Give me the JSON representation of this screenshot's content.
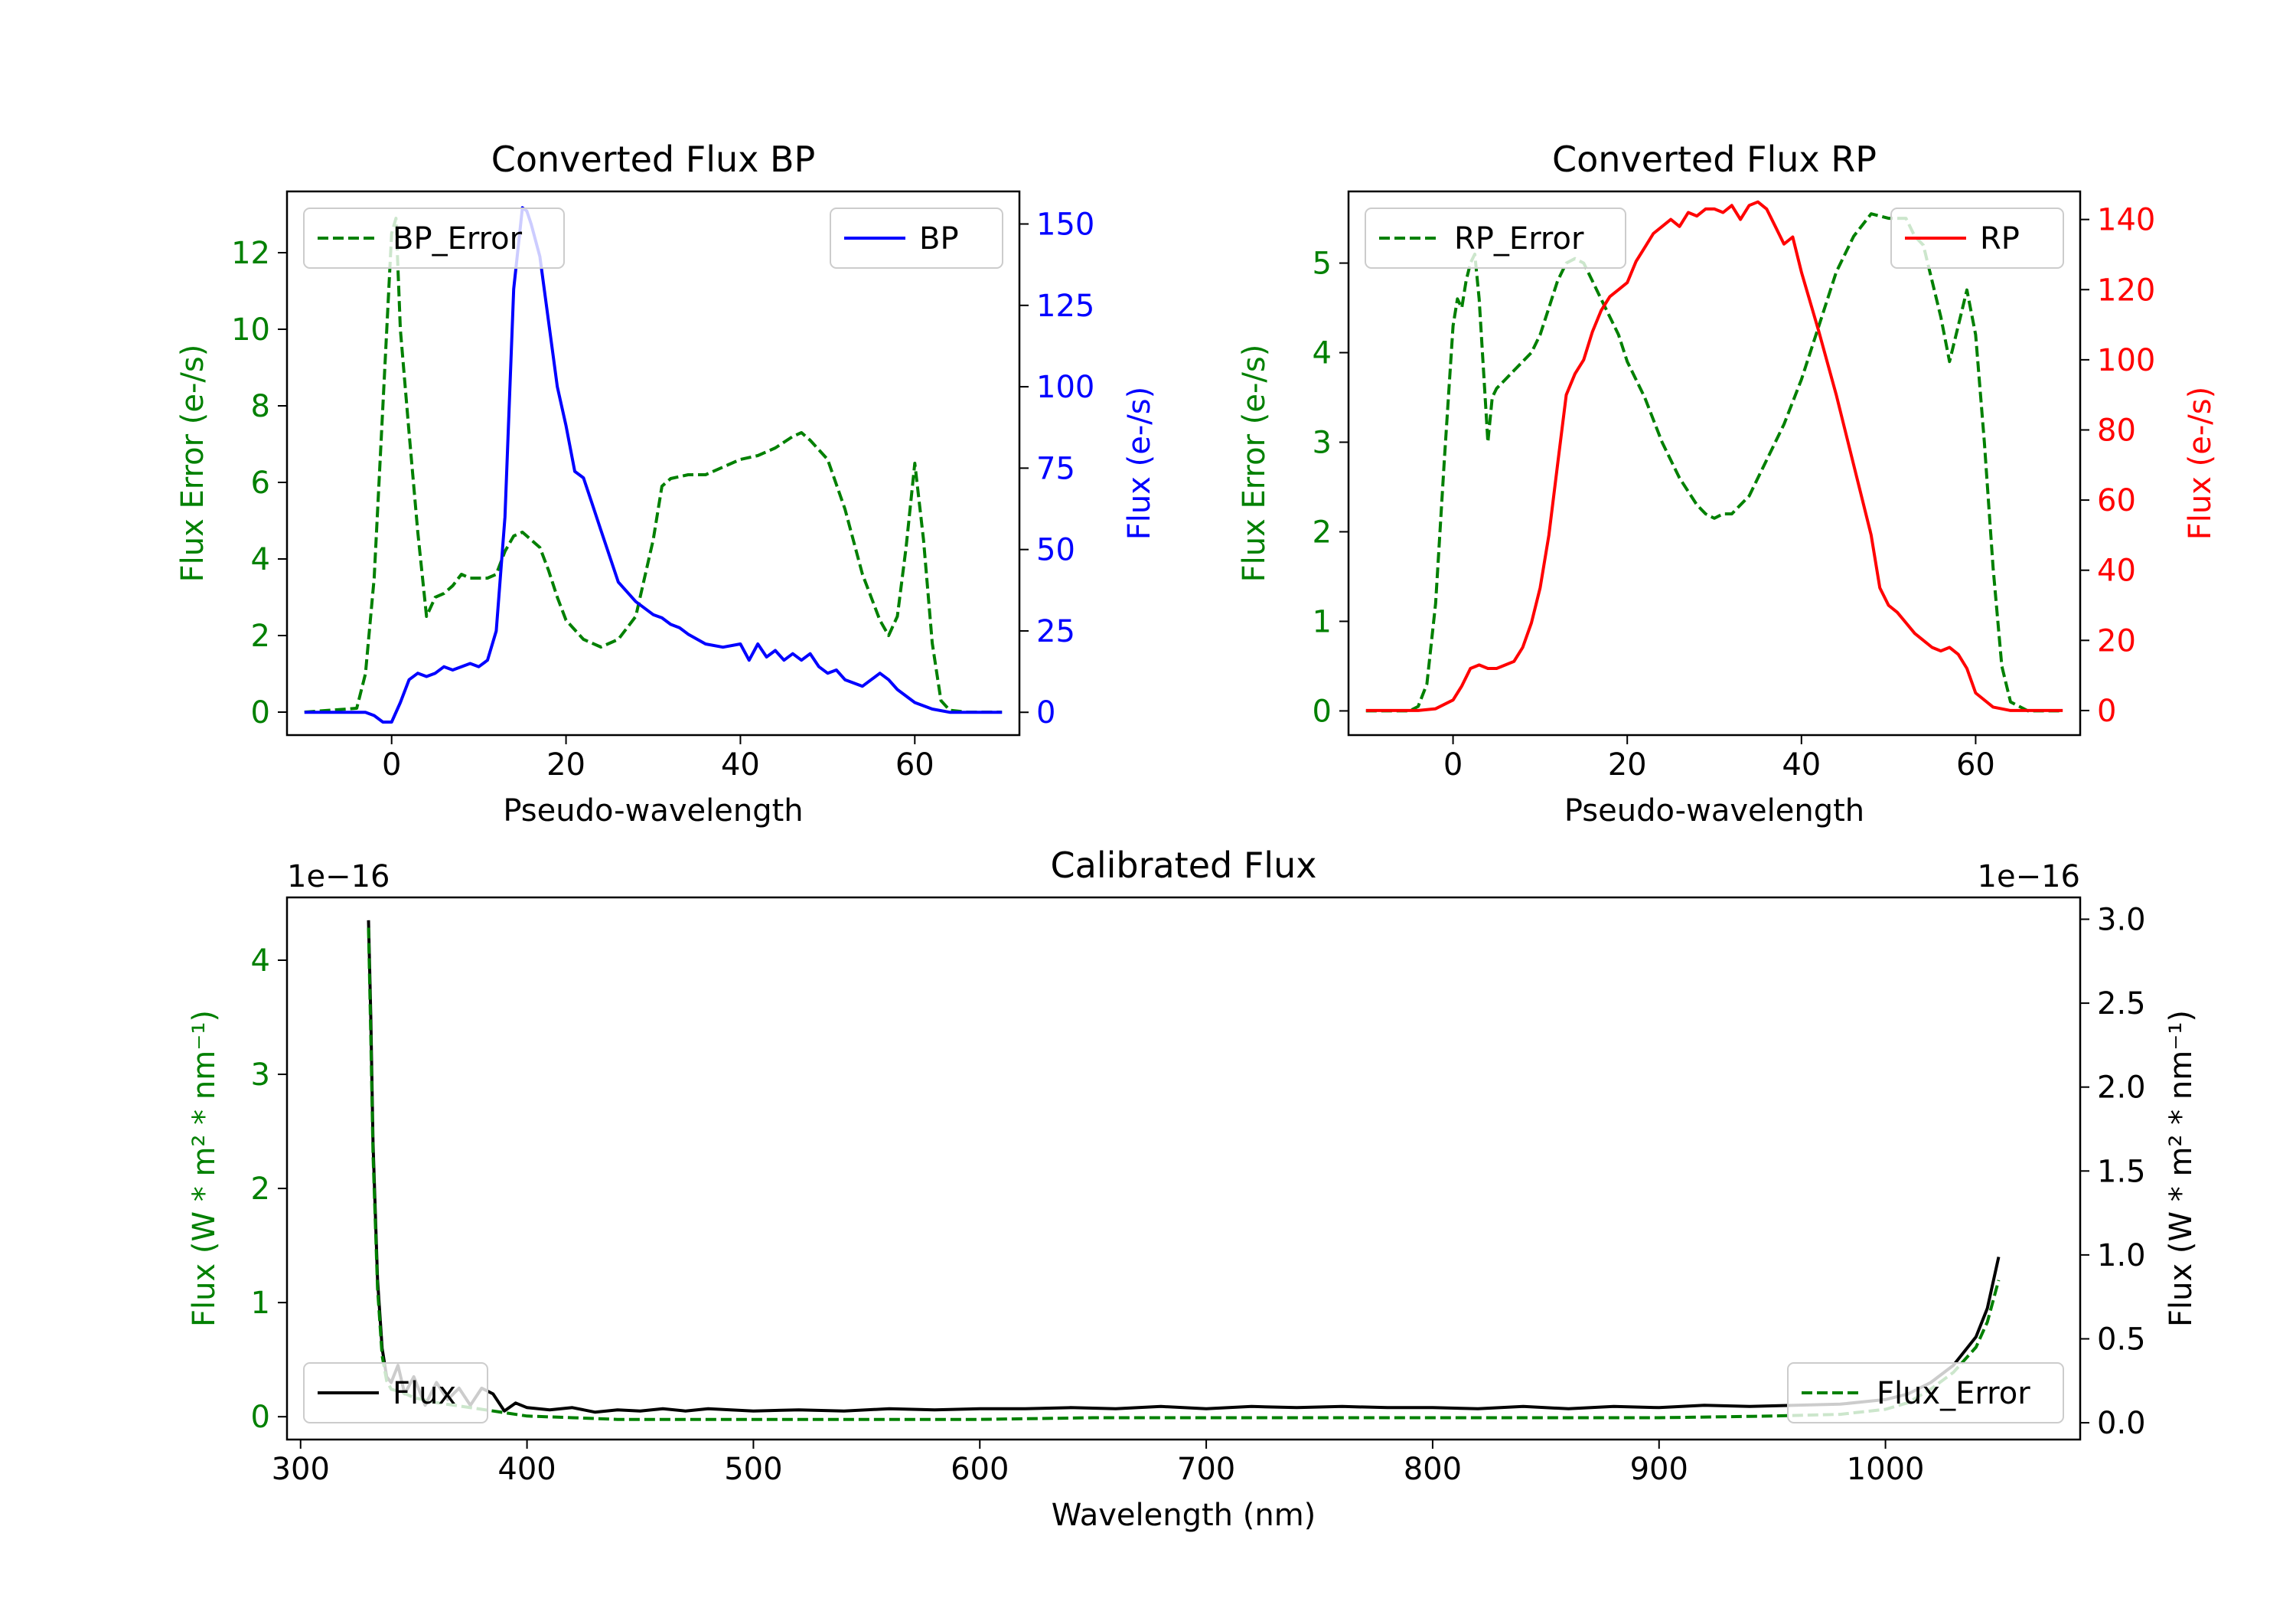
{
  "colors": {
    "error": "#008000",
    "bp": "#0000ff",
    "rp": "#ff0000",
    "flux": "#000000",
    "axis": "#000000"
  },
  "chart_data": [
    {
      "type": "line",
      "title": "Converted Flux BP",
      "xlabel": "Pseudo-wavelength",
      "xlim": [
        -12,
        72
      ],
      "x_ticks": [
        0,
        20,
        40,
        60
      ],
      "y_left": {
        "label": "Flux Error (e-/s)",
        "lim": [
          -0.6,
          13.6
        ],
        "ticks": [
          0,
          2,
          4,
          6,
          8,
          10,
          12
        ],
        "color": "#008000"
      },
      "y_right": {
        "label": "Flux (e-/s)",
        "lim": [
          -7,
          160
        ],
        "ticks": [
          0,
          25,
          50,
          75,
          100,
          125,
          150
        ],
        "color": "#0000ff"
      },
      "series": [
        {
          "name": "BP_Error",
          "axis": "left",
          "style": "dashed",
          "color": "#008000",
          "x": [
            -10,
            -4,
            -3,
            -2,
            -1,
            0,
            0.5,
            1,
            2,
            3,
            4,
            5,
            6,
            7,
            8,
            9,
            10,
            11,
            12,
            13,
            14,
            15,
            16,
            17,
            18,
            19,
            20,
            22,
            24,
            26,
            28,
            30,
            31,
            32,
            34,
            36,
            38,
            40,
            42,
            44,
            46,
            47,
            48,
            50,
            52,
            54,
            56,
            57,
            58,
            59,
            60,
            61,
            62,
            63,
            64,
            66,
            68,
            70
          ],
          "values": [
            0,
            0.1,
            1,
            3.5,
            8,
            12.5,
            12.9,
            10,
            7.3,
            4.7,
            2.5,
            3.0,
            3.1,
            3.3,
            3.6,
            3.5,
            3.5,
            3.5,
            3.6,
            4.2,
            4.6,
            4.7,
            4.5,
            4.3,
            3.7,
            3.0,
            2.4,
            1.9,
            1.7,
            1.9,
            2.5,
            4.5,
            5.9,
            6.1,
            6.2,
            6.2,
            6.4,
            6.6,
            6.7,
            6.9,
            7.2,
            7.3,
            7.1,
            6.6,
            5.3,
            3.6,
            2.4,
            2.0,
            2.5,
            4.3,
            6.5,
            4.5,
            1.8,
            0.3,
            0.05,
            0,
            0,
            0
          ]
        },
        {
          "name": "BP",
          "axis": "right",
          "style": "solid",
          "color": "#0000ff",
          "x": [
            -10,
            -3,
            -2,
            -1,
            0,
            1,
            2,
            3,
            4,
            5,
            6,
            7,
            8,
            9,
            10,
            11,
            12,
            13,
            14,
            15,
            15.5,
            16,
            17,
            18,
            19,
            20,
            21,
            22,
            23,
            24,
            25,
            26,
            28,
            30,
            31,
            32,
            33,
            34,
            36,
            38,
            40,
            41,
            42,
            43,
            44,
            45,
            46,
            47,
            48,
            49,
            50,
            51,
            52,
            53,
            54,
            55,
            56,
            57,
            58,
            60,
            62,
            64,
            66,
            68,
            70
          ],
          "values": [
            0,
            0,
            -1,
            -3,
            -3,
            3,
            10,
            12,
            11,
            12,
            14,
            13,
            14,
            15,
            14,
            16,
            25,
            60,
            130,
            155,
            154,
            150,
            140,
            120,
            100,
            88,
            74,
            72,
            64,
            56,
            48,
            40,
            34,
            30,
            29,
            27,
            26,
            24,
            21,
            20,
            21,
            16,
            21,
            17,
            19,
            16,
            18,
            16,
            18,
            14,
            12,
            13,
            10,
            9,
            8,
            10,
            12,
            10,
            7,
            3,
            1,
            0,
            0,
            0,
            0
          ]
        }
      ],
      "legend": [
        {
          "label": "BP_Error",
          "position": "upper-left"
        },
        {
          "label": "BP",
          "position": "upper-right"
        }
      ]
    },
    {
      "type": "line",
      "title": "Converted Flux RP",
      "xlabel": "Pseudo-wavelength",
      "xlim": [
        -12,
        72
      ],
      "x_ticks": [
        0,
        20,
        40,
        60
      ],
      "y_left": {
        "label": "Flux Error (e-/s)",
        "lim": [
          -0.27,
          5.8
        ],
        "ticks": [
          0,
          1,
          2,
          3,
          4,
          5
        ],
        "color": "#008000"
      },
      "y_right": {
        "label": "Flux (e-/s)",
        "lim": [
          -7,
          148
        ],
        "ticks": [
          0,
          20,
          40,
          60,
          80,
          100,
          120,
          140
        ],
        "color": "#ff0000"
      },
      "series": [
        {
          "name": "RP_Error",
          "axis": "left",
          "style": "dashed",
          "color": "#008000",
          "x": [
            -10,
            -5,
            -4,
            -3,
            -2,
            -1,
            0,
            0.5,
            1,
            1.5,
            2,
            2.5,
            3,
            3.5,
            4,
            4.5,
            5,
            6,
            7,
            8,
            9,
            10,
            11,
            12,
            13,
            14,
            15,
            16,
            17,
            18,
            19,
            20,
            22,
            24,
            26,
            28,
            29,
            30,
            31,
            32,
            33,
            34,
            35,
            36,
            38,
            40,
            42,
            44,
            46,
            48,
            50,
            52,
            53,
            54,
            55,
            56,
            57,
            58,
            59,
            60,
            61,
            62,
            63,
            64,
            66,
            68,
            70
          ],
          "values": [
            0,
            0,
            0.05,
            0.3,
            1.2,
            2.8,
            4.3,
            4.6,
            4.5,
            4.8,
            5.0,
            5.1,
            4.6,
            3.8,
            3.0,
            3.5,
            3.6,
            3.7,
            3.8,
            3.9,
            4.0,
            4.2,
            4.5,
            4.8,
            5.0,
            5.05,
            5.0,
            4.8,
            4.6,
            4.4,
            4.2,
            3.9,
            3.5,
            3.0,
            2.6,
            2.3,
            2.2,
            2.15,
            2.2,
            2.2,
            2.3,
            2.4,
            2.6,
            2.8,
            3.2,
            3.7,
            4.3,
            4.9,
            5.3,
            5.55,
            5.5,
            5.5,
            5.3,
            5.2,
            4.8,
            4.4,
            3.9,
            4.3,
            4.7,
            4.2,
            3.0,
            1.6,
            0.5,
            0.1,
            0,
            0,
            0
          ]
        },
        {
          "name": "RP",
          "axis": "right",
          "style": "solid",
          "color": "#ff0000",
          "x": [
            -10,
            -4,
            -2,
            0,
            1,
            2,
            3,
            4,
            5,
            6,
            7,
            8,
            9,
            10,
            11,
            12,
            13,
            14,
            15,
            16,
            17,
            18,
            19,
            20,
            21,
            22,
            23,
            24,
            25,
            26,
            27,
            28,
            29,
            30,
            31,
            32,
            33,
            34,
            35,
            36,
            37,
            38,
            39,
            40,
            42,
            44,
            46,
            48,
            49,
            50,
            51,
            52,
            53,
            54,
            55,
            56,
            57,
            58,
            59,
            60,
            62,
            64,
            66,
            68,
            70
          ],
          "values": [
            0,
            0,
            0.5,
            3,
            7,
            12,
            13,
            12,
            12,
            13,
            14,
            18,
            25,
            35,
            50,
            70,
            90,
            96,
            100,
            108,
            114,
            118,
            120,
            122,
            128,
            132,
            136,
            138,
            140,
            138,
            142,
            141,
            143,
            143,
            142,
            144,
            140,
            144,
            145,
            143,
            138,
            133,
            135,
            125,
            108,
            90,
            70,
            50,
            35,
            30,
            28,
            25,
            22,
            20,
            18,
            17,
            18,
            16,
            12,
            5,
            1,
            0,
            0,
            0,
            0
          ]
        }
      ],
      "legend": [
        {
          "label": "RP_Error",
          "position": "upper-left"
        },
        {
          "label": "RP",
          "position": "upper-right"
        }
      ]
    },
    {
      "type": "line",
      "title": "Calibrated Flux",
      "xlabel": "Wavelength (nm)",
      "xlim": [
        294,
        1086
      ],
      "x_ticks": [
        300,
        400,
        500,
        600,
        700,
        800,
        900,
        1000
      ],
      "y_left": {
        "label": "Flux (W * m² * nm⁻¹)",
        "lim": [
          -0.2,
          4.55
        ],
        "ticks": [
          0,
          1,
          2,
          3,
          4
        ],
        "offset_text": "1e−16",
        "color": "#008000"
      },
      "y_right": {
        "label": "Flux (W * m² * nm⁻¹)",
        "lim": [
          -0.1,
          3.13
        ],
        "ticks": [
          0.0,
          0.5,
          1.0,
          1.5,
          2.0,
          2.5,
          3.0
        ],
        "offset_text": "1e−16",
        "color": "#000000"
      },
      "series": [
        {
          "name": "Flux",
          "axis": "left",
          "style": "solid",
          "color": "#000000",
          "x": [
            330,
            331,
            332,
            334,
            336,
            338,
            340,
            343,
            346,
            350,
            355,
            360,
            365,
            370,
            375,
            380,
            385,
            390,
            395,
            400,
            410,
            420,
            430,
            440,
            450,
            460,
            470,
            480,
            490,
            500,
            520,
            540,
            560,
            580,
            600,
            620,
            640,
            660,
            680,
            700,
            720,
            740,
            760,
            780,
            800,
            820,
            840,
            860,
            880,
            900,
            920,
            940,
            960,
            980,
            1000,
            1010,
            1020,
            1030,
            1040,
            1045,
            1050
          ],
          "values": [
            4.35,
            3.5,
            2.4,
            1.2,
            0.6,
            0.35,
            0.3,
            0.45,
            0.2,
            0.35,
            0.1,
            0.3,
            0.15,
            0.25,
            0.1,
            0.25,
            0.2,
            0.05,
            0.12,
            0.08,
            0.06,
            0.08,
            0.04,
            0.06,
            0.05,
            0.07,
            0.05,
            0.07,
            0.06,
            0.05,
            0.06,
            0.05,
            0.07,
            0.06,
            0.07,
            0.07,
            0.08,
            0.07,
            0.09,
            0.07,
            0.09,
            0.08,
            0.09,
            0.08,
            0.08,
            0.07,
            0.09,
            0.07,
            0.09,
            0.08,
            0.1,
            0.09,
            0.1,
            0.11,
            0.15,
            0.2,
            0.3,
            0.45,
            0.7,
            0.95,
            1.4
          ]
        },
        {
          "name": "Flux_Error",
          "axis": "right",
          "style": "dashed",
          "color": "#008000",
          "x": [
            330,
            331,
            332,
            334,
            336,
            338,
            340,
            345,
            350,
            360,
            370,
            380,
            390,
            400,
            420,
            440,
            460,
            480,
            500,
            550,
            600,
            650,
            700,
            750,
            800,
            850,
            900,
            950,
            980,
            1000,
            1010,
            1020,
            1030,
            1040,
            1045,
            1050
          ],
          "values": [
            2.95,
            2.3,
            1.6,
            0.8,
            0.4,
            0.25,
            0.2,
            0.18,
            0.15,
            0.12,
            0.1,
            0.08,
            0.06,
            0.04,
            0.03,
            0.02,
            0.02,
            0.02,
            0.02,
            0.02,
            0.02,
            0.03,
            0.03,
            0.03,
            0.03,
            0.03,
            0.03,
            0.04,
            0.05,
            0.08,
            0.12,
            0.2,
            0.3,
            0.45,
            0.6,
            0.85
          ]
        }
      ],
      "legend": [
        {
          "label": "Flux",
          "position": "lower-left"
        },
        {
          "label": "Flux_Error",
          "position": "lower-right"
        }
      ]
    }
  ]
}
